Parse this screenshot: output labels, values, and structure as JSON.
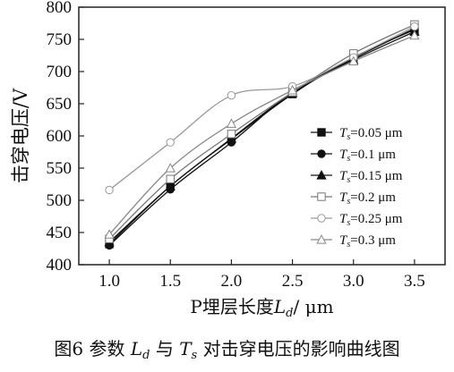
{
  "caption": "图6 参数 Ld 与 Ts 对击穿电压的影响曲线图",
  "chart_data": {
    "type": "line",
    "title": "",
    "xlabel": "P埋层长度Ld/ μm",
    "ylabel": "击穿电压/V",
    "x": [
      1.0,
      1.5,
      2.0,
      2.5,
      3.0,
      3.5
    ],
    "x_ticks": [
      "1.0",
      "1.5",
      "2.0",
      "2.5",
      "3.0",
      "3.5"
    ],
    "xlim": [
      0.75,
      3.75
    ],
    "y_ticks": [
      "400",
      "450",
      "500",
      "550",
      "600",
      "650",
      "700",
      "750",
      "800"
    ],
    "ylim": [
      400,
      800
    ],
    "grid": false,
    "legend_position": "bottom-right",
    "series": [
      {
        "name": "Ts=0.05 μm",
        "marker": "filled-square",
        "color": "#111111",
        "values": [
          432,
          522,
          595,
          665,
          722,
          765
        ]
      },
      {
        "name": "Ts=0.1 μm",
        "marker": "filled-circle",
        "color": "#111111",
        "values": [
          430,
          517,
          590,
          668,
          720,
          767
        ]
      },
      {
        "name": "Ts=0.15 μm",
        "marker": "filled-triangle",
        "color": "#111111",
        "values": [
          435,
          522,
          596,
          667,
          718,
          762
        ]
      },
      {
        "name": "Ts=0.2 μm",
        "marker": "open-square",
        "color": "#777777",
        "values": [
          440,
          533,
          603,
          668,
          728,
          773
        ]
      },
      {
        "name": "Ts=0.25 μm",
        "marker": "open-circle",
        "color": "#999999",
        "values": [
          516,
          590,
          663,
          677,
          722,
          770
        ]
      },
      {
        "name": "Ts=0.3 μm",
        "marker": "open-triangle",
        "color": "#888888",
        "values": [
          447,
          550,
          619,
          671,
          716,
          756
        ]
      }
    ]
  }
}
